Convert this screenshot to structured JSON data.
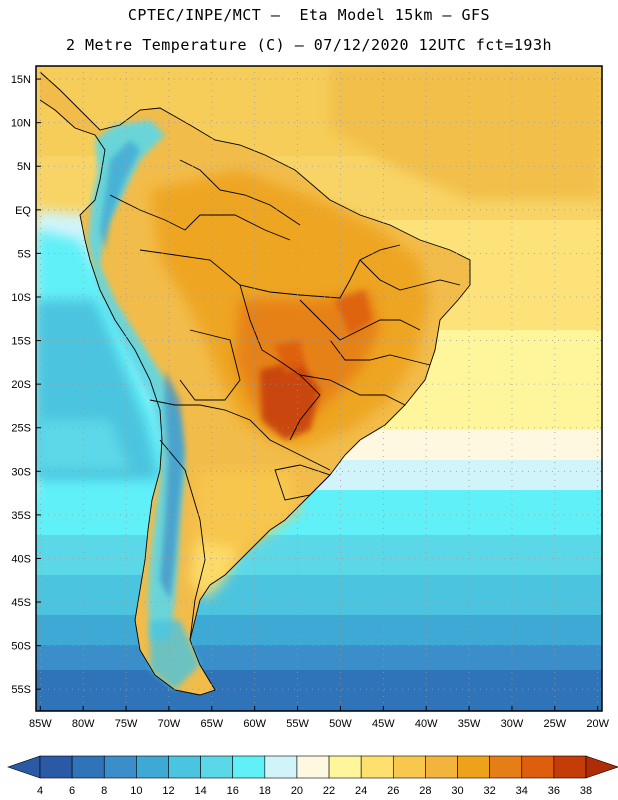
{
  "header": {
    "line1": "CPTEC/INPE/MCT –  Eta Model 15km – GFS",
    "line2": "2 Metre Temperature (C) – 07/12/2020 12UTC fct=193h"
  },
  "map": {
    "lat_labels": [
      "15N",
      "10N",
      "5N",
      "EQ",
      "5S",
      "10S",
      "15S",
      "20S",
      "25S",
      "30S",
      "35S",
      "40S",
      "45S",
      "50S",
      "55S"
    ],
    "lon_labels": [
      "85W",
      "80W",
      "75W",
      "70W",
      "65W",
      "60W",
      "55W",
      "50W",
      "45W",
      "40W",
      "35W",
      "30W",
      "25W",
      "20W"
    ],
    "lat_values": [
      15,
      10,
      5,
      0,
      -5,
      -10,
      -15,
      -20,
      -25,
      -30,
      -35,
      -40,
      -45,
      -50,
      -55
    ],
    "lon_values": [
      -85,
      -80,
      -75,
      -70,
      -65,
      -60,
      -55,
      -50,
      -45,
      -40,
      -35,
      -30,
      -25,
      -20
    ],
    "extent": {
      "lon_min": -85.5,
      "lon_max": -19.5,
      "lat_min": -57.5,
      "lat_max": 16.5
    }
  },
  "colorbar": {
    "labels": [
      "4",
      "6",
      "8",
      "10",
      "12",
      "14",
      "16",
      "18",
      "20",
      "22",
      "24",
      "26",
      "28",
      "30",
      "32",
      "34",
      "36",
      "38"
    ],
    "colors": [
      "#2a5aa6",
      "#2f73b9",
      "#3a8ec9",
      "#3fa9d6",
      "#4bc4df",
      "#5bd8e8",
      "#60f0f8",
      "#d0f4fa",
      "#fff8e0",
      "#fff59a",
      "#fde06e",
      "#f8c84e",
      "#f2b43c",
      "#eea21a",
      "#e67e18",
      "#de5e0e",
      "#c43c08",
      "#b02c06"
    ]
  }
}
